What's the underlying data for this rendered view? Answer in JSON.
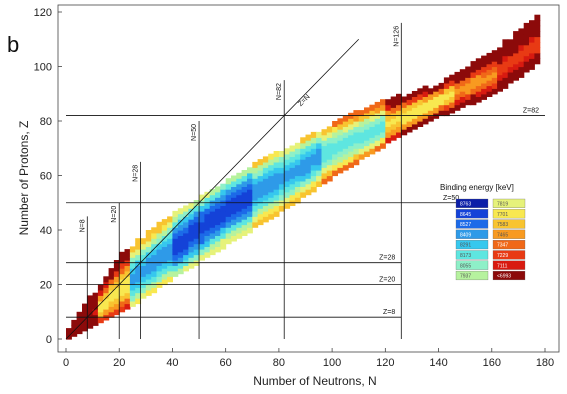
{
  "chart_data": {
    "type": "heatmap",
    "panel_label": "b",
    "xlabel": "Number of Neutrons, N",
    "ylabel": "Number of Protons, Z",
    "xlim": [
      -5,
      182
    ],
    "ylim": [
      -5,
      122
    ],
    "xticks": [
      "0",
      "20",
      "40",
      "60",
      "80",
      "100",
      "120",
      "140",
      "160",
      "180"
    ],
    "xtick_values": [
      0,
      20,
      40,
      60,
      80,
      100,
      120,
      140,
      160,
      180
    ],
    "yticks": [
      "0",
      "20",
      "40",
      "60",
      "80",
      "100",
      "120"
    ],
    "ytick_values": [
      0,
      20,
      40,
      60,
      80,
      100,
      120
    ],
    "grid": false,
    "legend_position": "right",
    "magic_lines": {
      "vertical": [
        {
          "n": 8,
          "z_from": 0,
          "z_to": 45,
          "label": "N=8"
        },
        {
          "n": 20,
          "z_from": 0,
          "z_to": 50,
          "label": "N=20"
        },
        {
          "n": 28,
          "z_from": 0,
          "z_to": 65,
          "label": "N=28"
        },
        {
          "n": 50,
          "z_from": 0,
          "z_to": 80,
          "label": "N=50"
        },
        {
          "n": 82,
          "z_from": 0,
          "z_to": 95,
          "label": "N=82"
        },
        {
          "n": 126,
          "z_from": 0,
          "z_to": 116,
          "label": "N=126"
        }
      ],
      "horizontal": [
        {
          "z": 8,
          "n_from": 0,
          "n_to": 126,
          "label": "Z=8"
        },
        {
          "z": 20,
          "n_from": 0,
          "n_to": 126,
          "label": "Z=20"
        },
        {
          "z": 28,
          "n_from": 0,
          "n_to": 126,
          "label": "Z=28"
        },
        {
          "z": 50,
          "n_from": 0,
          "n_to": 150,
          "label": "Z=50"
        },
        {
          "z": 82,
          "n_from": 0,
          "n_to": 180,
          "label": "Z=82"
        }
      ],
      "diagonal": {
        "from": [
          0,
          0
        ],
        "to": [
          110,
          110
        ],
        "label": "Z=N"
      }
    },
    "legend": {
      "title": "Binding energy [keV]",
      "entries": [
        {
          "label": "8763",
          "color": "#0b1ea8"
        },
        {
          "label": "8645",
          "color": "#1442d8"
        },
        {
          "label": "8527",
          "color": "#1c6ae8"
        },
        {
          "label": "8409",
          "color": "#2e9ae8"
        },
        {
          "label": "8291",
          "color": "#36c8ee"
        },
        {
          "label": "8173",
          "color": "#5ee6e0"
        },
        {
          "label": "8055",
          "color": "#8ef0c8"
        },
        {
          "label": "7937",
          "color": "#b6f29e"
        },
        {
          "label": "7819",
          "color": "#e6f27a"
        },
        {
          "label": "7701",
          "color": "#f8e850"
        },
        {
          "label": "7583",
          "color": "#f8c430"
        },
        {
          "label": "7465",
          "color": "#f89a20"
        },
        {
          "label": "7347",
          "color": "#f06818"
        },
        {
          "label": "7229",
          "color": "#e83a14"
        },
        {
          "label": "7111",
          "color": "#d81a10"
        },
        {
          "label": "<6993",
          "color": "#8c0a0a"
        }
      ]
    },
    "stable_band_center_z": [
      [
        0,
        0
      ],
      [
        20,
        18
      ],
      [
        40,
        33
      ],
      [
        60,
        47
      ],
      [
        80,
        58
      ],
      [
        100,
        69
      ],
      [
        120,
        78
      ],
      [
        140,
        87
      ],
      [
        160,
        96
      ],
      [
        176,
        107
      ]
    ],
    "band_lower_z": [
      [
        0,
        0
      ],
      [
        20,
        10
      ],
      [
        40,
        23
      ],
      [
        60,
        35
      ],
      [
        80,
        47
      ],
      [
        100,
        60
      ],
      [
        120,
        72
      ],
      [
        140,
        82
      ],
      [
        160,
        90
      ],
      [
        176,
        101
      ]
    ],
    "band_upper_z": [
      [
        0,
        2
      ],
      [
        20,
        30
      ],
      [
        40,
        45
      ],
      [
        60,
        57
      ],
      [
        80,
        68
      ],
      [
        100,
        78
      ],
      [
        120,
        86
      ],
      [
        140,
        92
      ],
      [
        160,
        104
      ],
      [
        176,
        117
      ]
    ]
  }
}
